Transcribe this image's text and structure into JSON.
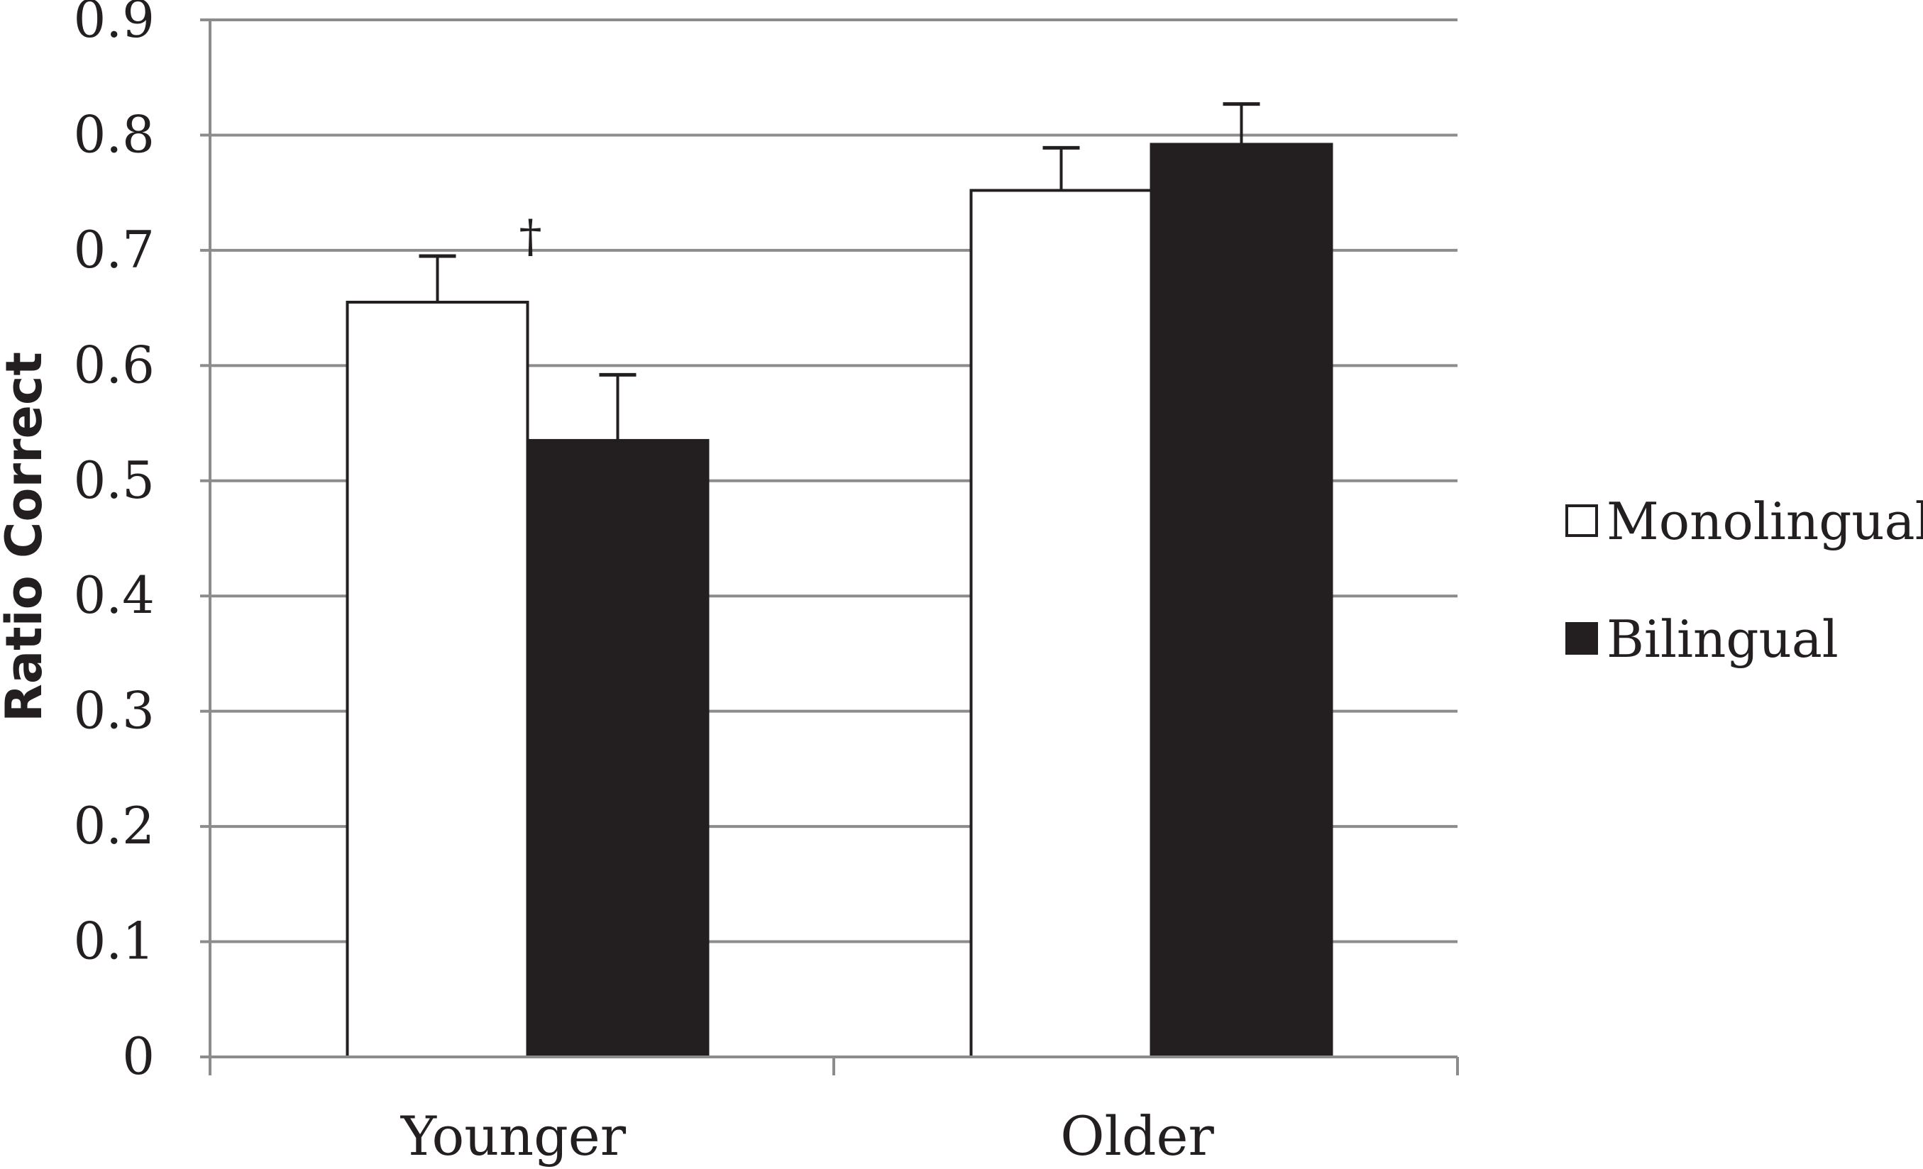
{
  "chart_data": {
    "type": "bar",
    "title": "",
    "xlabel": "",
    "ylabel": "Ratio Correct",
    "categories": [
      "Younger",
      "Older"
    ],
    "series": [
      {
        "name": "Monolingual",
        "values": [
          0.655,
          0.752
        ],
        "errors": [
          0.04,
          0.037
        ],
        "color": "#ffffff"
      },
      {
        "name": "Bilingual",
        "values": [
          0.535,
          0.792
        ],
        "errors": [
          0.057,
          0.035
        ],
        "color": "#231f20"
      }
    ],
    "ylim": [
      0,
      0.9
    ],
    "yticks": [
      "0",
      "0.1",
      "0.2",
      "0.3",
      "0.4",
      "0.5",
      "0.6",
      "0.7",
      "0.8",
      "0.9"
    ],
    "grid": true,
    "legend_position": "right",
    "annotations": [
      {
        "text": "†",
        "category": "Younger",
        "value": 0.7
      }
    ]
  }
}
